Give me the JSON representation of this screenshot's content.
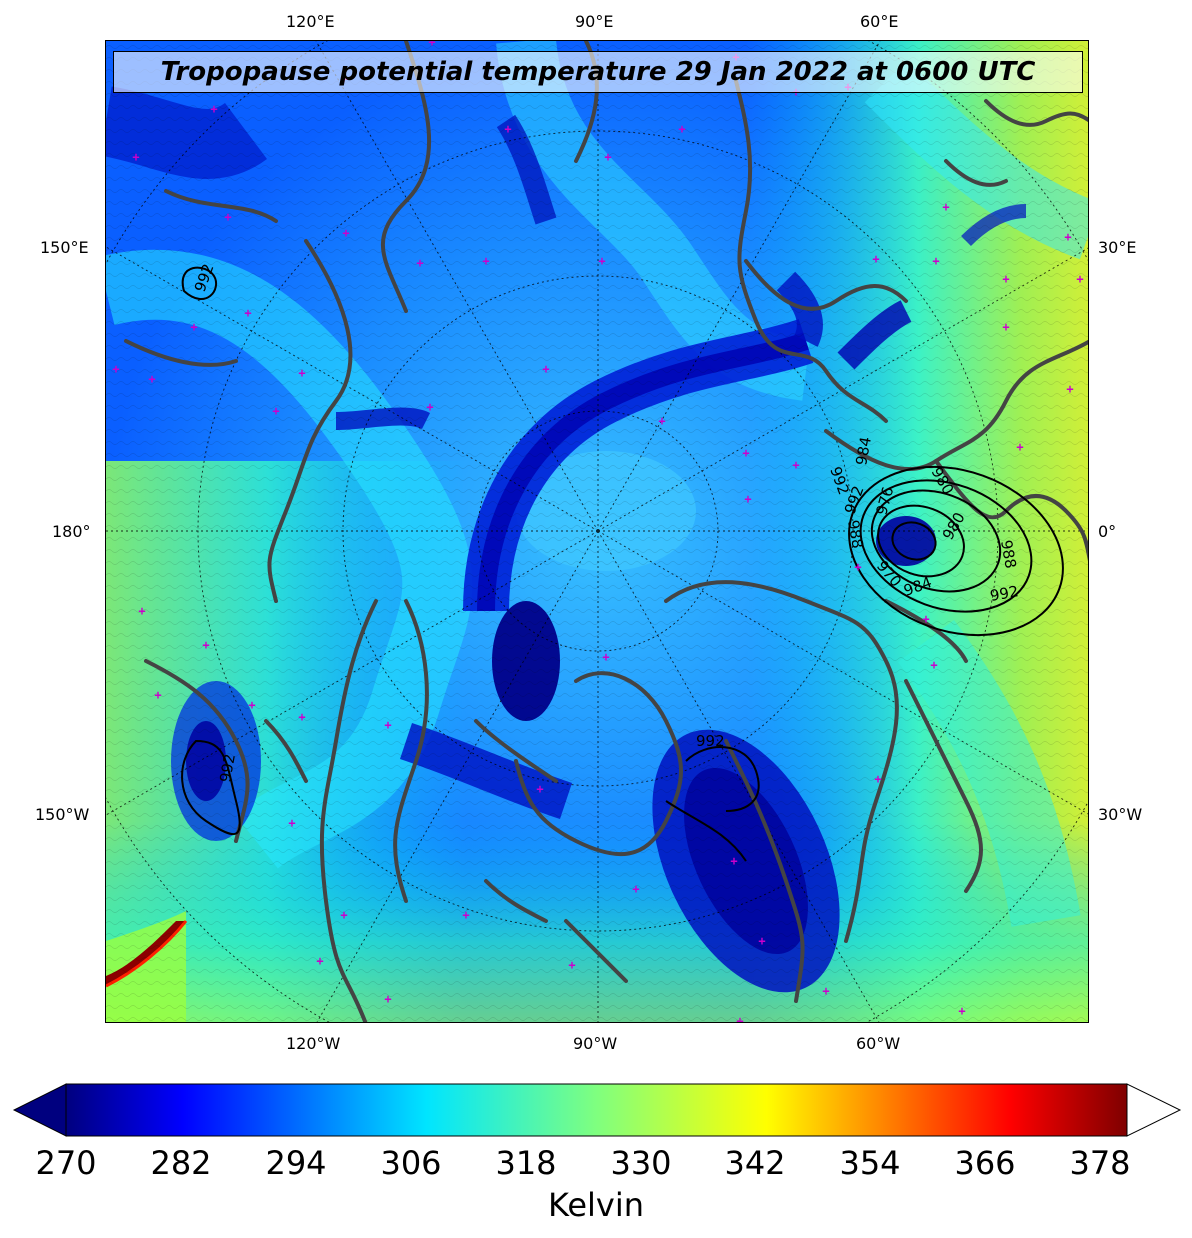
{
  "title": "Tropopause potential temperature 29 Jan 2022 at 0600 UTC",
  "longitude_labels_top": [
    "120°E",
    "90°E",
    "60°E"
  ],
  "longitude_labels_bottom": [
    "120°W",
    "90°W",
    "60°W"
  ],
  "longitude_labels_left": [
    "150°E",
    "180°",
    "150°W"
  ],
  "longitude_labels_right": [
    "30°E",
    "0°",
    "30°W"
  ],
  "pressure_contour_labels": [
    "992",
    "992",
    "992",
    "992",
    "988",
    "984",
    "980",
    "976",
    "970",
    "980",
    "984",
    "988",
    "992",
    "992"
  ],
  "colorbar": {
    "label": "Kelvin",
    "ticks": [
      "270",
      "282",
      "294",
      "306",
      "318",
      "330",
      "342",
      "354",
      "366",
      "378"
    ],
    "min": 270,
    "max": 381,
    "colormap": "jet",
    "extend": "both",
    "colors": {
      "dark_blue": "#00007f",
      "blue": "#0000ff",
      "cyan": "#00e5ff",
      "green": "#7fff7f",
      "yellow": "#ffff00",
      "red": "#ff0000",
      "dark_red": "#7f0000"
    }
  },
  "map": {
    "projection": "north polar stereographic",
    "coastline_color": "#444444",
    "marker_color": "#cc00cc",
    "marker_symbol": "+"
  }
}
